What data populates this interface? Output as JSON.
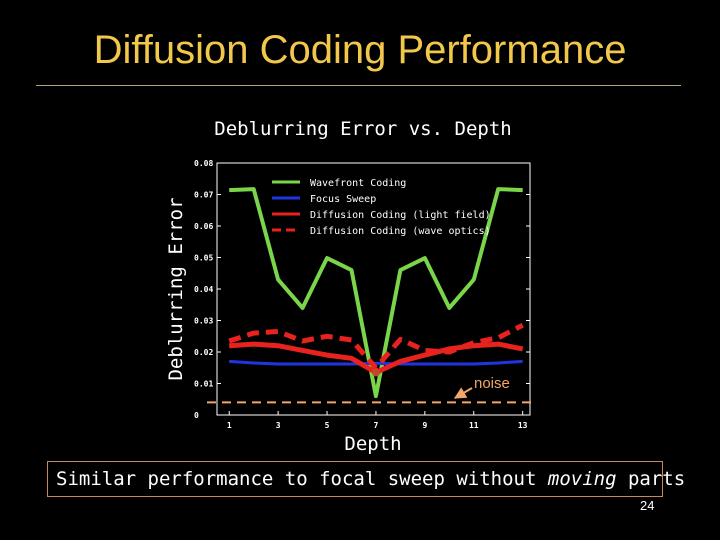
{
  "slide": {
    "title": "Diffusion Coding Performance",
    "page_number": "24",
    "caption_before": "Similar performance to focal sweep without ",
    "caption_emphasis": "moving",
    "caption_after": " parts"
  },
  "colors": {
    "background": "#000000",
    "title": "#f2c84b",
    "wavefront": "#7bd54a",
    "focus_sweep": "#1f35e0",
    "diffusion": "#e8221e",
    "noise": "#f2a66a"
  },
  "chart_data": {
    "type": "line",
    "title": "Deblurring Error vs. Depth",
    "xlabel": "Depth",
    "ylabel": "Deblurring Error",
    "xlim": [
      0.5,
      13.3
    ],
    "ylim": [
      0,
      0.08
    ],
    "xticks": [
      "1",
      "3",
      "5",
      "7",
      "9",
      "11",
      "13"
    ],
    "yticks": [
      "0",
      "0.01",
      "0.02",
      "0.03",
      "0.04",
      "0.05",
      "0.06",
      "0.07",
      "0.08"
    ],
    "x": [
      1,
      2,
      3,
      4,
      5,
      6,
      7,
      8,
      9,
      10,
      11,
      12,
      13
    ],
    "series": [
      {
        "name": "Wavefront Coding",
        "style": "solid-green",
        "values": [
          0.0714,
          0.0717,
          0.043,
          0.034,
          0.0498,
          0.046,
          0.006,
          0.046,
          0.0498,
          0.034,
          0.043,
          0.0717,
          0.0714
        ]
      },
      {
        "name": "Focus Sweep",
        "style": "solid-blue",
        "values": [
          0.017,
          0.0165,
          0.0162,
          0.0162,
          0.0162,
          0.0162,
          0.0164,
          0.0162,
          0.0162,
          0.0162,
          0.0162,
          0.0165,
          0.017
        ]
      },
      {
        "name": "Diffusion Coding (light field)",
        "style": "solid-red",
        "values": [
          0.022,
          0.0225,
          0.022,
          0.0205,
          0.019,
          0.018,
          0.0135,
          0.017,
          0.019,
          0.021,
          0.022,
          0.0225,
          0.021
        ]
      },
      {
        "name": "Diffusion Coding (wave optics)",
        "style": "dashed-red",
        "values": [
          0.0235,
          0.026,
          0.0265,
          0.0235,
          0.025,
          0.0238,
          0.015,
          0.024,
          0.0205,
          0.02,
          0.023,
          0.0245,
          0.0285
        ]
      },
      {
        "name": "noise",
        "style": "dashed-orange",
        "values": [
          0.004,
          0.004,
          0.004,
          0.004,
          0.004,
          0.004,
          0.004,
          0.004,
          0.004,
          0.004,
          0.004,
          0.004,
          0.004
        ]
      }
    ],
    "annotations": [
      {
        "text": "noise",
        "target_x": 11,
        "target_y": 0.004
      }
    ]
  }
}
